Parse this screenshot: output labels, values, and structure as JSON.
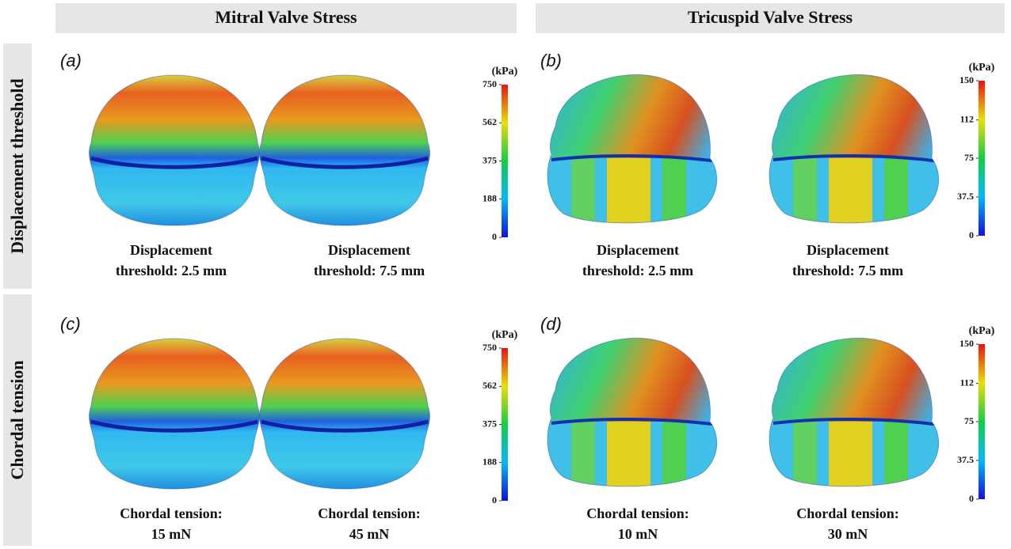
{
  "columns": [
    "Mitral Valve Stress",
    "Tricuspid Valve Stress"
  ],
  "rows": [
    "Displacement threshold",
    "Chordal tension"
  ],
  "panels": [
    {
      "letter": "(a)",
      "captions": [
        [
          "Displacement",
          "threshold: 2.5 mm"
        ],
        [
          "Displacement",
          "threshold: 7.5 mm"
        ]
      ],
      "colorbar": {
        "unit": "(kPa)",
        "lim": [
          0,
          750
        ],
        "ticks": [
          0,
          188,
          375,
          562,
          750
        ]
      }
    },
    {
      "letter": "(b)",
      "captions": [
        [
          "Displacement",
          "threshold: 2.5 mm"
        ],
        [
          "Displacement",
          "threshold: 7.5 mm"
        ]
      ],
      "colorbar": {
        "unit": "(kPa)",
        "lim": [
          0,
          150
        ],
        "ticks": [
          0,
          37.5,
          75,
          112,
          150
        ]
      }
    },
    {
      "letter": "(c)",
      "captions": [
        [
          "Chordal tension:",
          "15 mN"
        ],
        [
          "Chordal tension:",
          "45 mN"
        ]
      ],
      "colorbar": {
        "unit": "(kPa)",
        "lim": [
          0,
          750
        ],
        "ticks": [
          0,
          188,
          375,
          562,
          750
        ]
      }
    },
    {
      "letter": "(d)",
      "captions": [
        [
          "Chordal tension:",
          "10 mN"
        ],
        [
          "Chordal tension:",
          "30 mN"
        ]
      ],
      "colorbar": {
        "unit": "(kPa)",
        "lim": [
          0,
          150
        ],
        "ticks": [
          0,
          37.5,
          75,
          112,
          150
        ]
      }
    }
  ]
}
